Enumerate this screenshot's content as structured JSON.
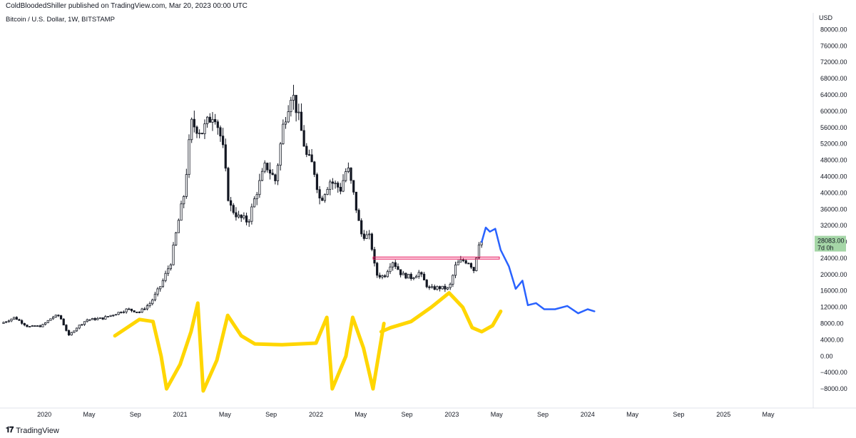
{
  "header": {
    "published": "ColdBloodedShiller published on TradingView.com, Mar 20, 2023 00:00 UTC",
    "symbol": "Bitcoin / U.S. Dollar, 1W, BITSTAMP"
  },
  "footer": {
    "brand": "TradingView",
    "logo": "tv-logo-icon"
  },
  "chart_data": {
    "type": "candlestick",
    "currency_label": "USD",
    "y_ticks": [
      80000,
      76000,
      72000,
      68000,
      64000,
      60000,
      56000,
      52000,
      48000,
      44000,
      40000,
      36000,
      32000,
      28000,
      24000,
      20000,
      16000,
      12000,
      8000,
      4000,
      0,
      -4000,
      -8000
    ],
    "y_tick_labels": [
      "80000.00",
      "76000.00",
      "72000.00",
      "68000.00",
      "64000.00",
      "60000.00",
      "56000.00",
      "52000.00",
      "48000.00",
      "44000.00",
      "40000.00",
      "36000.00",
      "32000.00",
      "28000.00",
      "24000.00",
      "20000.00",
      "16000.00",
      "12000.00",
      "8000.00",
      "4000.00",
      "0.00",
      "−4000.00",
      "−8000.00"
    ],
    "ylim": [
      -12000,
      82000
    ],
    "x_ticks": [
      {
        "label": "2020",
        "t": 2020.0
      },
      {
        "label": "May",
        "t": 2020.33
      },
      {
        "label": "Sep",
        "t": 2020.67
      },
      {
        "label": "2021",
        "t": 2021.0
      },
      {
        "label": "May",
        "t": 2021.33
      },
      {
        "label": "Sep",
        "t": 2021.67
      },
      {
        "label": "2022",
        "t": 2022.0
      },
      {
        "label": "May",
        "t": 2022.33
      },
      {
        "label": "Sep",
        "t": 2022.67
      },
      {
        "label": "2023",
        "t": 2023.0
      },
      {
        "label": "May",
        "t": 2023.33
      },
      {
        "label": "Sep",
        "t": 2023.67
      },
      {
        "label": "2024",
        "t": 2024.0
      },
      {
        "label": "May",
        "t": 2024.33
      },
      {
        "label": "Sep",
        "t": 2024.67
      },
      {
        "label": "2025",
        "t": 2025.0
      },
      {
        "label": "May",
        "t": 2025.33
      }
    ],
    "xlim": [
      2019.7,
      2025.65
    ],
    "last_price": {
      "value": "28083.00",
      "countdown": "7d 0h",
      "y": 28083,
      "color": "#a5d6a7"
    },
    "price_keypoints": [
      [
        2019.7,
        8000
      ],
      [
        2019.8,
        9500
      ],
      [
        2019.9,
        7200
      ],
      [
        2020.0,
        7400
      ],
      [
        2020.08,
        9600
      ],
      [
        2020.13,
        10000
      ],
      [
        2020.2,
        5000
      ],
      [
        2020.25,
        6800
      ],
      [
        2020.33,
        8900
      ],
      [
        2020.45,
        9300
      ],
      [
        2020.55,
        10500
      ],
      [
        2020.63,
        11500
      ],
      [
        2020.72,
        10800
      ],
      [
        2020.8,
        13000
      ],
      [
        2020.88,
        17500
      ],
      [
        2020.95,
        23000
      ],
      [
        2021.0,
        32000
      ],
      [
        2021.05,
        40000
      ],
      [
        2021.1,
        57000
      ],
      [
        2021.18,
        55000
      ],
      [
        2021.27,
        60000
      ],
      [
        2021.33,
        52000
      ],
      [
        2021.38,
        37000
      ],
      [
        2021.45,
        34000
      ],
      [
        2021.52,
        33000
      ],
      [
        2021.58,
        40000
      ],
      [
        2021.65,
        47000
      ],
      [
        2021.72,
        43000
      ],
      [
        2021.78,
        57000
      ],
      [
        2021.84,
        65000
      ],
      [
        2021.88,
        60000
      ],
      [
        2021.95,
        49000
      ],
      [
        2022.0,
        46500
      ],
      [
        2022.05,
        38000
      ],
      [
        2022.12,
        43000
      ],
      [
        2022.2,
        41000
      ],
      [
        2022.25,
        46500
      ],
      [
        2022.3,
        39000
      ],
      [
        2022.35,
        30000
      ],
      [
        2022.42,
        29000
      ],
      [
        2022.46,
        20000
      ],
      [
        2022.52,
        19500
      ],
      [
        2022.58,
        23500
      ],
      [
        2022.65,
        20000
      ],
      [
        2022.72,
        19300
      ],
      [
        2022.78,
        20500
      ],
      [
        2022.85,
        16500
      ],
      [
        2022.92,
        16800
      ],
      [
        2023.0,
        16500
      ],
      [
        2023.05,
        22500
      ],
      [
        2023.1,
        23500
      ],
      [
        2023.15,
        23000
      ],
      [
        2023.18,
        21000
      ],
      [
        2023.22,
        28083
      ]
    ],
    "drawings": {
      "resistance_box": {
        "t_start": 2022.42,
        "t_end": 2023.35,
        "y_top": 24300,
        "y_bottom": 23900,
        "color": "#e91e63"
      },
      "blue_projection": {
        "color": "#2962ff",
        "points": [
          [
            2023.22,
            28000
          ],
          [
            2023.25,
            31500
          ],
          [
            2023.28,
            30500
          ],
          [
            2023.32,
            31200
          ],
          [
            2023.36,
            26000
          ],
          [
            2023.42,
            22000
          ],
          [
            2023.47,
            16500
          ],
          [
            2023.52,
            18500
          ],
          [
            2023.56,
            12500
          ],
          [
            2023.62,
            13000
          ],
          [
            2023.68,
            11500
          ],
          [
            2023.76,
            11500
          ],
          [
            2023.85,
            12300
          ],
          [
            2023.93,
            10500
          ],
          [
            2024.0,
            11500
          ],
          [
            2024.05,
            11000
          ]
        ]
      },
      "yellow_overlay": {
        "color": "#ffd600",
        "points": [
          [
            2020.52,
            5000
          ],
          [
            2020.7,
            9000
          ],
          [
            2020.8,
            8500
          ],
          [
            2020.86,
            0
          ],
          [
            2020.9,
            -8000
          ],
          [
            2021.0,
            -2000
          ],
          [
            2021.08,
            6000
          ],
          [
            2021.13,
            13000
          ],
          [
            2021.17,
            -8500
          ],
          [
            2021.27,
            -1000
          ],
          [
            2021.35,
            10000
          ],
          [
            2021.45,
            5000
          ],
          [
            2021.55,
            3000
          ],
          [
            2021.75,
            2800
          ],
          [
            2022.0,
            3200
          ],
          [
            2022.08,
            9500
          ],
          [
            2022.12,
            -8000
          ],
          [
            2022.22,
            0
          ],
          [
            2022.27,
            9500
          ],
          [
            2022.35,
            2000
          ],
          [
            2022.42,
            -8000
          ],
          [
            2022.5,
            8000
          ]
        ]
      },
      "yellow_overlay_2": {
        "color": "#ffd600",
        "points": [
          [
            2022.48,
            6000
          ],
          [
            2022.55,
            7000
          ],
          [
            2022.7,
            8500
          ],
          [
            2022.85,
            12000
          ],
          [
            2022.98,
            15500
          ],
          [
            2023.08,
            12000
          ],
          [
            2023.15,
            7000
          ],
          [
            2023.22,
            6000
          ],
          [
            2023.3,
            7500
          ],
          [
            2023.36,
            11000
          ]
        ]
      }
    }
  }
}
